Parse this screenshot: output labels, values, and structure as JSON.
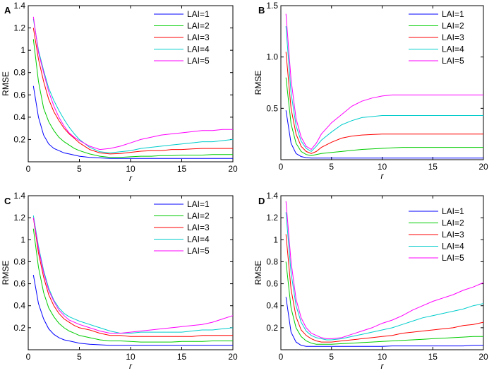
{
  "chart_data": [
    {
      "panel": "A",
      "type": "line",
      "xlabel": "r",
      "ylabel": "RMSE",
      "xlim": [
        0,
        20
      ],
      "ylim": [
        0,
        1.4
      ],
      "xticks": [
        0,
        5,
        10,
        15,
        20
      ],
      "yticks": [
        0.2,
        0.4,
        0.6,
        0.8,
        1.0,
        1.2,
        1.4
      ],
      "ytick_labels": [
        "0.2",
        "0.4",
        "0.6",
        "0.8",
        "1",
        "1.2",
        "1.4"
      ],
      "legend": "top-right",
      "x": [
        0.5,
        1,
        1.5,
        2,
        2.5,
        3,
        3.5,
        4,
        4.5,
        5,
        6,
        7,
        8,
        9,
        10,
        11,
        12,
        13,
        14,
        15,
        16,
        17,
        18,
        19,
        20
      ],
      "series": [
        {
          "name": "LAI=1",
          "color": "#0000ff",
          "values": [
            0.68,
            0.4,
            0.24,
            0.16,
            0.12,
            0.1,
            0.08,
            0.07,
            0.06,
            0.05,
            0.04,
            0.035,
            0.03,
            0.03,
            0.03,
            0.03,
            0.03,
            0.03,
            0.03,
            0.03,
            0.03,
            0.03,
            0.03,
            0.03,
            0.03
          ]
        },
        {
          "name": "LAI=2",
          "color": "#00cc00",
          "values": [
            1.1,
            0.72,
            0.48,
            0.36,
            0.28,
            0.22,
            0.18,
            0.15,
            0.12,
            0.1,
            0.07,
            0.05,
            0.04,
            0.04,
            0.045,
            0.05,
            0.05,
            0.055,
            0.055,
            0.06,
            0.06,
            0.06,
            0.065,
            0.065,
            0.065
          ]
        },
        {
          "name": "LAI=3",
          "color": "#ff0000",
          "values": [
            1.2,
            0.92,
            0.72,
            0.56,
            0.45,
            0.37,
            0.3,
            0.25,
            0.21,
            0.17,
            0.11,
            0.08,
            0.07,
            0.075,
            0.085,
            0.095,
            0.1,
            0.1,
            0.11,
            0.11,
            0.115,
            0.12,
            0.12,
            0.12,
            0.12
          ]
        },
        {
          "name": "LAI=4",
          "color": "#00cccc",
          "values": [
            1.28,
            1.0,
            0.82,
            0.66,
            0.55,
            0.46,
            0.38,
            0.31,
            0.25,
            0.2,
            0.13,
            0.09,
            0.08,
            0.09,
            0.1,
            0.12,
            0.13,
            0.14,
            0.15,
            0.16,
            0.17,
            0.18,
            0.18,
            0.19,
            0.2
          ]
        },
        {
          "name": "LAI=5",
          "color": "#ff00ff",
          "values": [
            1.3,
            0.98,
            0.8,
            0.63,
            0.5,
            0.4,
            0.32,
            0.26,
            0.22,
            0.19,
            0.14,
            0.11,
            0.12,
            0.14,
            0.17,
            0.2,
            0.22,
            0.24,
            0.25,
            0.26,
            0.27,
            0.28,
            0.28,
            0.29,
            0.29
          ]
        }
      ]
    },
    {
      "panel": "B",
      "type": "line",
      "xlabel": "r",
      "ylabel": "RMSE",
      "xlim": [
        0,
        20
      ],
      "ylim": [
        0,
        1.5
      ],
      "xticks": [
        0,
        5,
        10,
        15,
        20
      ],
      "yticks": [
        0.5,
        1.0,
        1.5
      ],
      "ytick_labels": [
        "0.5",
        "1.0",
        "1.5"
      ],
      "legend": "top-right",
      "x": [
        0.5,
        1,
        1.5,
        2,
        2.5,
        3,
        3.5,
        4,
        5,
        6,
        7,
        8,
        9,
        10,
        11,
        12,
        13,
        14,
        15,
        16,
        17,
        18,
        19,
        20
      ],
      "series": [
        {
          "name": "LAI=1",
          "color": "#0000ff",
          "values": [
            0.48,
            0.16,
            0.06,
            0.03,
            0.02,
            0.015,
            0.015,
            0.015,
            0.015,
            0.015,
            0.015,
            0.015,
            0.015,
            0.015,
            0.015,
            0.015,
            0.015,
            0.015,
            0.015,
            0.015,
            0.015,
            0.015,
            0.015,
            0.015
          ]
        },
        {
          "name": "LAI=2",
          "color": "#00cc00",
          "values": [
            0.8,
            0.35,
            0.16,
            0.08,
            0.05,
            0.04,
            0.05,
            0.06,
            0.07,
            0.08,
            0.09,
            0.1,
            0.105,
            0.11,
            0.115,
            0.12,
            0.12,
            0.12,
            0.12,
            0.12,
            0.12,
            0.12,
            0.12,
            0.12
          ]
        },
        {
          "name": "LAI=3",
          "color": "#ff0000",
          "values": [
            1.05,
            0.5,
            0.25,
            0.13,
            0.08,
            0.06,
            0.08,
            0.12,
            0.17,
            0.21,
            0.23,
            0.24,
            0.245,
            0.25,
            0.25,
            0.25,
            0.25,
            0.25,
            0.25,
            0.25,
            0.25,
            0.25,
            0.25,
            0.25
          ]
        },
        {
          "name": "LAI=4",
          "color": "#00cccc",
          "values": [
            1.3,
            0.65,
            0.33,
            0.18,
            0.11,
            0.08,
            0.13,
            0.19,
            0.27,
            0.34,
            0.38,
            0.41,
            0.42,
            0.43,
            0.43,
            0.43,
            0.43,
            0.43,
            0.43,
            0.43,
            0.43,
            0.43,
            0.43,
            0.43
          ]
        },
        {
          "name": "LAI=5",
          "color": "#ff00ff",
          "values": [
            1.42,
            0.78,
            0.4,
            0.22,
            0.13,
            0.1,
            0.16,
            0.25,
            0.36,
            0.44,
            0.52,
            0.57,
            0.6,
            0.62,
            0.63,
            0.63,
            0.63,
            0.63,
            0.63,
            0.63,
            0.63,
            0.63,
            0.63,
            0.63
          ]
        }
      ]
    },
    {
      "panel": "C",
      "type": "line",
      "xlabel": "r",
      "ylabel": "RMSE",
      "xlim": [
        0,
        20
      ],
      "ylim": [
        0,
        1.4
      ],
      "xticks": [
        0,
        5,
        10,
        15,
        20
      ],
      "yticks": [
        0.2,
        0.4,
        0.6,
        0.8,
        1.0,
        1.2,
        1.4
      ],
      "ytick_labels": [
        "0.2",
        "0.4",
        "0.6",
        "0.8",
        "1",
        "1.2",
        "1.4"
      ],
      "legend": "top-right",
      "x": [
        0.5,
        1,
        1.5,
        2,
        2.5,
        3,
        3.5,
        4,
        4.5,
        5,
        6,
        7,
        8,
        9,
        10,
        11,
        12,
        13,
        14,
        15,
        16,
        17,
        18,
        19,
        20
      ],
      "series": [
        {
          "name": "LAI=1",
          "color": "#0000ff",
          "values": [
            0.68,
            0.42,
            0.28,
            0.19,
            0.14,
            0.11,
            0.09,
            0.08,
            0.07,
            0.06,
            0.05,
            0.045,
            0.04,
            0.04,
            0.04,
            0.04,
            0.04,
            0.04,
            0.04,
            0.04,
            0.04,
            0.04,
            0.04,
            0.04,
            0.04
          ]
        },
        {
          "name": "LAI=2",
          "color": "#00cc00",
          "values": [
            1.1,
            0.75,
            0.52,
            0.38,
            0.3,
            0.24,
            0.2,
            0.17,
            0.15,
            0.13,
            0.11,
            0.09,
            0.08,
            0.08,
            0.075,
            0.07,
            0.07,
            0.07,
            0.07,
            0.075,
            0.075,
            0.075,
            0.08,
            0.08,
            0.08
          ]
        },
        {
          "name": "LAI=3",
          "color": "#ff0000",
          "values": [
            1.2,
            0.88,
            0.66,
            0.5,
            0.4,
            0.33,
            0.28,
            0.25,
            0.22,
            0.2,
            0.18,
            0.15,
            0.13,
            0.13,
            0.12,
            0.12,
            0.12,
            0.12,
            0.12,
            0.12,
            0.12,
            0.13,
            0.13,
            0.13,
            0.13
          ]
        },
        {
          "name": "LAI=4",
          "color": "#00cccc",
          "values": [
            1.22,
            0.94,
            0.72,
            0.56,
            0.45,
            0.38,
            0.33,
            0.3,
            0.28,
            0.26,
            0.23,
            0.2,
            0.17,
            0.15,
            0.15,
            0.16,
            0.16,
            0.16,
            0.16,
            0.16,
            0.17,
            0.18,
            0.18,
            0.19,
            0.2
          ]
        },
        {
          "name": "LAI=5",
          "color": "#ff00ff",
          "values": [
            1.2,
            0.92,
            0.7,
            0.54,
            0.44,
            0.36,
            0.31,
            0.27,
            0.25,
            0.23,
            0.2,
            0.17,
            0.15,
            0.15,
            0.16,
            0.17,
            0.18,
            0.19,
            0.2,
            0.21,
            0.22,
            0.23,
            0.25,
            0.28,
            0.31
          ]
        }
      ]
    },
    {
      "panel": "D",
      "type": "line",
      "xlabel": "r",
      "ylabel": "RMSE",
      "xlim": [
        0,
        20
      ],
      "ylim": [
        0,
        1.4
      ],
      "xticks": [
        0,
        5,
        10,
        15,
        20
      ],
      "yticks": [
        0.2,
        0.4,
        0.6,
        0.8,
        1.0,
        1.2,
        1.4
      ],
      "ytick_labels": [
        "0.2",
        "0.4",
        "0.6",
        "0.8",
        "1",
        "1.2",
        "1.4"
      ],
      "legend": "top-right",
      "x": [
        0.5,
        1,
        1.5,
        2,
        2.5,
        3,
        3.5,
        4,
        4.5,
        5,
        6,
        7,
        8,
        9,
        10,
        11,
        12,
        13,
        14,
        15,
        16,
        17,
        18,
        19,
        20
      ],
      "series": [
        {
          "name": "LAI=1",
          "color": "#0000ff",
          "values": [
            0.48,
            0.16,
            0.07,
            0.04,
            0.03,
            0.03,
            0.03,
            0.03,
            0.03,
            0.03,
            0.03,
            0.03,
            0.03,
            0.03,
            0.03,
            0.035,
            0.035,
            0.035,
            0.035,
            0.035,
            0.035,
            0.035,
            0.035,
            0.04,
            0.04
          ]
        },
        {
          "name": "LAI=2",
          "color": "#00cc00",
          "values": [
            0.8,
            0.38,
            0.2,
            0.12,
            0.08,
            0.06,
            0.05,
            0.05,
            0.05,
            0.05,
            0.055,
            0.06,
            0.065,
            0.07,
            0.075,
            0.08,
            0.085,
            0.09,
            0.095,
            0.1,
            0.105,
            0.11,
            0.115,
            0.12,
            0.12
          ]
        },
        {
          "name": "LAI=3",
          "color": "#ff0000",
          "values": [
            1.05,
            0.55,
            0.3,
            0.18,
            0.13,
            0.1,
            0.08,
            0.07,
            0.07,
            0.07,
            0.08,
            0.09,
            0.1,
            0.11,
            0.12,
            0.13,
            0.15,
            0.16,
            0.17,
            0.18,
            0.19,
            0.2,
            0.22,
            0.23,
            0.25
          ]
        },
        {
          "name": "LAI=4",
          "color": "#00cccc",
          "values": [
            1.25,
            0.7,
            0.4,
            0.25,
            0.17,
            0.13,
            0.11,
            0.1,
            0.09,
            0.09,
            0.1,
            0.12,
            0.14,
            0.16,
            0.18,
            0.2,
            0.23,
            0.26,
            0.29,
            0.31,
            0.33,
            0.35,
            0.37,
            0.4,
            0.42
          ]
        },
        {
          "name": "LAI=5",
          "color": "#ff00ff",
          "values": [
            1.35,
            0.8,
            0.46,
            0.29,
            0.2,
            0.15,
            0.13,
            0.11,
            0.1,
            0.1,
            0.11,
            0.14,
            0.17,
            0.2,
            0.24,
            0.27,
            0.31,
            0.36,
            0.4,
            0.44,
            0.47,
            0.5,
            0.54,
            0.57,
            0.61
          ]
        }
      ]
    }
  ]
}
